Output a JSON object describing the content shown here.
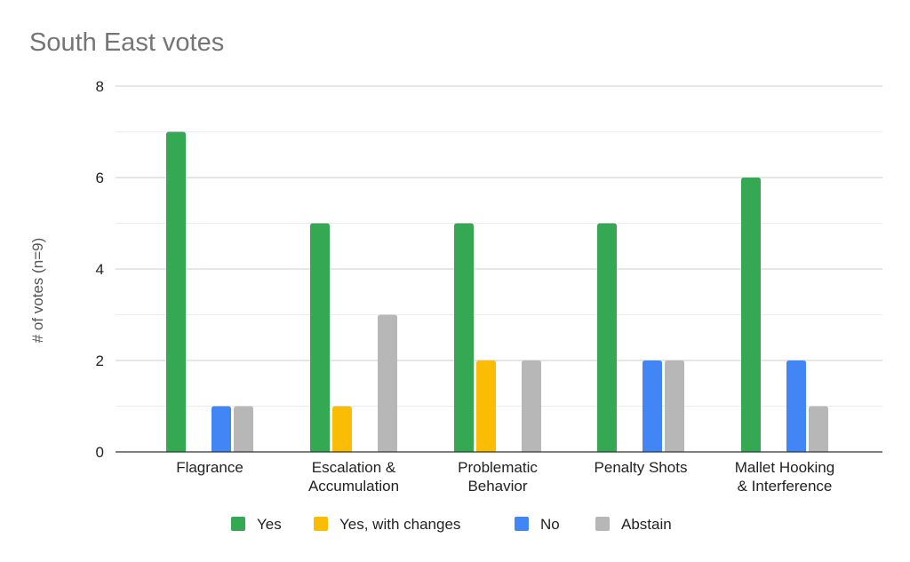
{
  "chart_data": {
    "type": "bar",
    "title": "South East votes",
    "xlabel": "",
    "ylabel": "# of votes (n=9)",
    "ylim": [
      0,
      8
    ],
    "yticks": [
      0,
      2,
      4,
      6,
      8
    ],
    "minor_gridlines": [
      1,
      3,
      5,
      7
    ],
    "grid": true,
    "legend_position": "bottom",
    "categories": [
      [
        "Flagrance"
      ],
      [
        "Escalation &",
        "Accumulation"
      ],
      [
        "Problematic",
        "Behavior"
      ],
      [
        "Penalty Shots"
      ],
      [
        "Mallet Hooking",
        "& Interference"
      ]
    ],
    "series": [
      {
        "name": "Yes",
        "color": "#34a853",
        "values": [
          7,
          5,
          5,
          5,
          6
        ]
      },
      {
        "name": "Yes, with changes",
        "color": "#fbbc04",
        "values": [
          0,
          1,
          2,
          0,
          0
        ]
      },
      {
        "name": "No",
        "color": "#4285f4",
        "values": [
          1,
          0,
          0,
          2,
          2
        ]
      },
      {
        "name": "Abstain",
        "color": "#b7b7b7",
        "values": [
          1,
          3,
          2,
          2,
          1
        ]
      }
    ]
  }
}
